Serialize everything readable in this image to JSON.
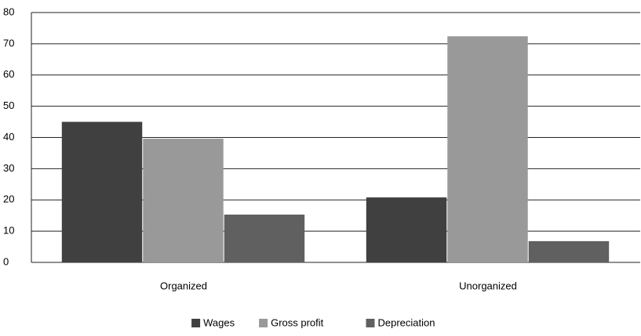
{
  "chart_data": {
    "type": "bar",
    "categories": [
      "Organized",
      "Unorganized"
    ],
    "series": [
      {
        "name": "Wages",
        "color": "#404040",
        "values": [
          45,
          20.8
        ]
      },
      {
        "name": "Gross profit",
        "color": "#999999",
        "values": [
          39.6,
          72.4
        ]
      },
      {
        "name": "Depreciation",
        "color": "#606060",
        "values": [
          15.3,
          6.8
        ]
      }
    ],
    "ylim": [
      0,
      80
    ],
    "yticks": [
      0,
      10,
      20,
      30,
      40,
      50,
      60,
      70,
      80
    ],
    "grid": true,
    "legend": "bottom"
  }
}
